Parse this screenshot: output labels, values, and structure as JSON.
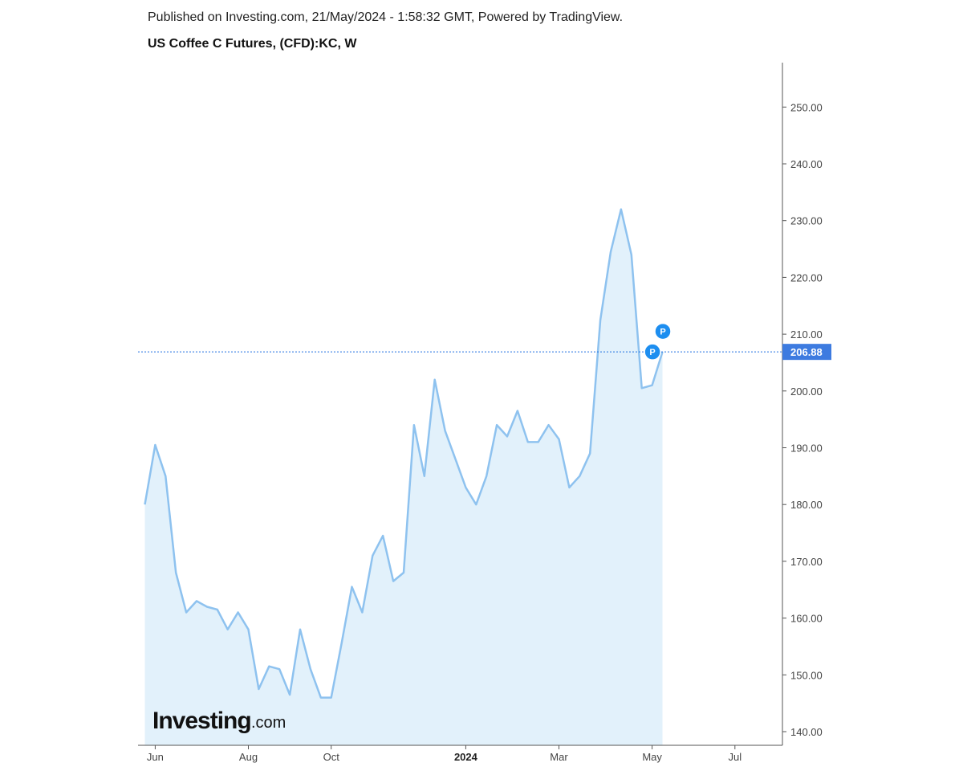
{
  "header": {
    "published": "Published on Investing.com, 21/May/2024 - 1:58:32 GMT, Powered by TradingView.",
    "title": "US Coffee C Futures, (CFD):KC, W"
  },
  "logo": {
    "main": "Investing",
    "suffix": ".com"
  },
  "colors": {
    "line": "#8ec2ef",
    "area": "#e2f1fb",
    "price_line": "#1e6fe0",
    "price_label_bg": "#3d7be0",
    "marker": "#1d8ef0",
    "axis": "#555555"
  },
  "chart_data": {
    "type": "area",
    "ylim": [
      137,
      257
    ],
    "y_ticks": [
      140,
      150,
      160,
      170,
      180,
      190,
      200,
      210,
      220,
      230,
      240,
      250
    ],
    "y_tick_labels": [
      "140.00",
      "150.00",
      "160.00",
      "170.00",
      "180.00",
      "190.00",
      "200.00",
      "210.00",
      "220.00",
      "230.00",
      "240.00",
      "250.00"
    ],
    "x_ticks": [
      {
        "label": "Jun",
        "index": 1,
        "bold": false
      },
      {
        "label": "Aug",
        "index": 10,
        "bold": false
      },
      {
        "label": "Oct",
        "index": 18,
        "bold": false
      },
      {
        "label": "2024",
        "index": 31,
        "bold": true
      },
      {
        "label": "Mar",
        "index": 40,
        "bold": false
      },
      {
        "label": "May",
        "index": 49,
        "bold": false
      },
      {
        "label": "Jul",
        "index": 57,
        "bold": false
      }
    ],
    "weeks_total": 61,
    "series": [
      {
        "values": [
          180,
          190.5,
          185,
          168,
          161,
          163,
          162,
          161.5,
          158,
          161,
          158,
          147.5,
          151.5,
          151,
          146.5,
          158,
          151,
          146,
          146,
          155.5,
          165.5,
          161,
          171,
          174.5,
          166.5,
          168,
          194,
          185,
          202,
          193,
          188,
          183,
          180,
          185,
          194,
          192,
          196.5,
          191,
          191,
          194,
          191.5,
          183,
          185,
          189,
          212.5,
          224.5,
          232,
          224,
          200.5,
          201,
          206.88
        ]
      }
    ],
    "current_price": 206.88,
    "current_price_label": "206.88",
    "markers": [
      {
        "label": "P",
        "index": 49,
        "value": 206.88
      },
      {
        "label": "P",
        "index": 50,
        "value": 210.5
      }
    ]
  }
}
